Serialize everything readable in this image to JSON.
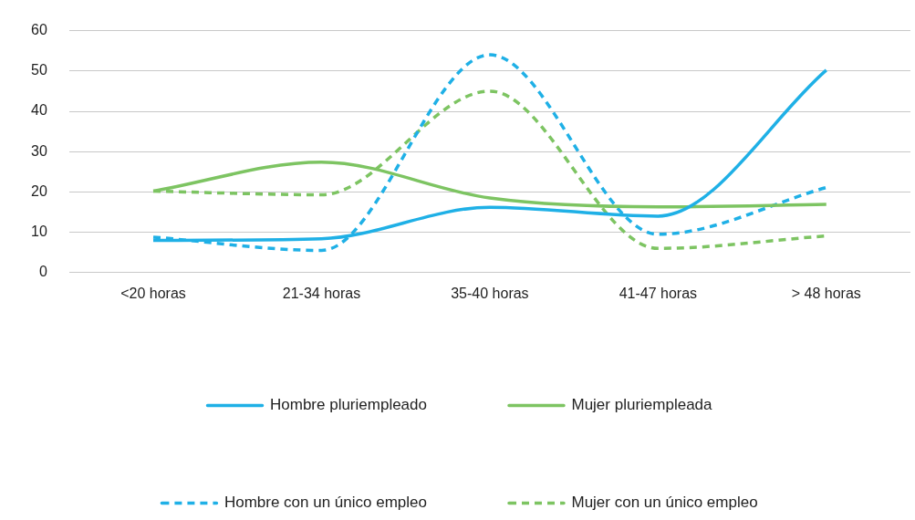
{
  "chart_data": {
    "type": "line",
    "categories": [
      "<20 horas",
      "21-34 horas",
      "35-40 horas",
      "41-47 horas",
      "> 48 horas"
    ],
    "series": [
      {
        "name": "Hombre pluriempleado",
        "color": "#1fb0e6",
        "line_style": "solid",
        "values": [
          8,
          8.4,
          16.2,
          14,
          50.2
        ]
      },
      {
        "name": "Mujer pluriempleada",
        "color": "#7dc462",
        "line_style": "solid",
        "values": [
          20.2,
          27.4,
          18.5,
          16.3,
          16.9
        ]
      },
      {
        "name": "Hombre con un único empleo",
        "color": "#1fb0e6",
        "line_style": "dashed",
        "values": [
          8.8,
          5.5,
          54,
          9.5,
          21.1
        ]
      },
      {
        "name": "Mujer con un único empleo",
        "color": "#7dc462",
        "line_style": "dashed",
        "values": [
          20.2,
          19.3,
          45,
          6,
          9.1
        ]
      }
    ],
    "ylim": [
      0,
      60
    ],
    "yticks": [
      0,
      10,
      20,
      30,
      40,
      50,
      60
    ],
    "grid": "y",
    "legend": "bottom",
    "marker": "none"
  }
}
